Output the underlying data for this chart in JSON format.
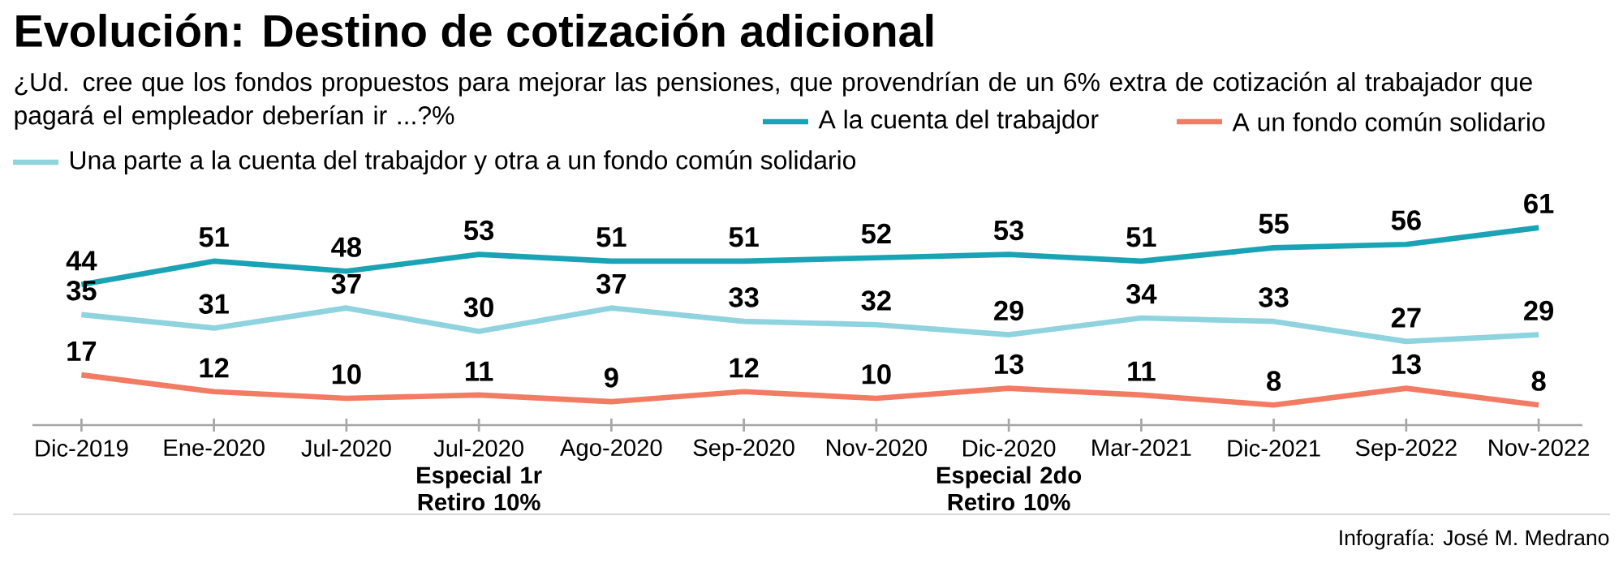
{
  "chart_data": {
    "type": "line",
    "title": "Evolución: Destino de cotización adicional",
    "subtitle": "¿Ud. cree que los fondos propuestos para mejorar las pensiones, que provendrían de un 6%  extra de cotización al trabajador que pagará el empleador deberían ir ...?%",
    "categories": [
      "Dic-2019",
      "Ene-2020",
      "Jul-2020",
      "Jul-2020 **Especial 1r Retiro 10%**",
      "Ago-2020",
      "Sep-2020",
      "Nov-2020",
      "Dic-2020 **Especial 2do Retiro 10%**",
      "Mar-2021",
      "Dic-2021",
      "Sep-2022",
      "Nov-2022"
    ],
    "series": [
      {
        "name": "A la cuenta del trabajdor",
        "color": "#1aa3b5",
        "values": [
          44,
          51,
          48,
          53,
          51,
          51,
          52,
          53,
          51,
          55,
          56,
          61
        ]
      },
      {
        "name": "A un fondo común solidario",
        "color": "#f27b63",
        "values": [
          17,
          12,
          10,
          11,
          9,
          12,
          10,
          13,
          11,
          8,
          13,
          8
        ]
      },
      {
        "name": "Una parte a  la cuenta del trabajdor y otra a un fondo común solidario",
        "color": "#8fd3df",
        "values": [
          35,
          31,
          37,
          30,
          37,
          33,
          32,
          29,
          34,
          33,
          27,
          29
        ]
      }
    ],
    "data_labels": true,
    "legend": "top right",
    "annotations": [
      "Infografía: José M. Medrano"
    ]
  }
}
